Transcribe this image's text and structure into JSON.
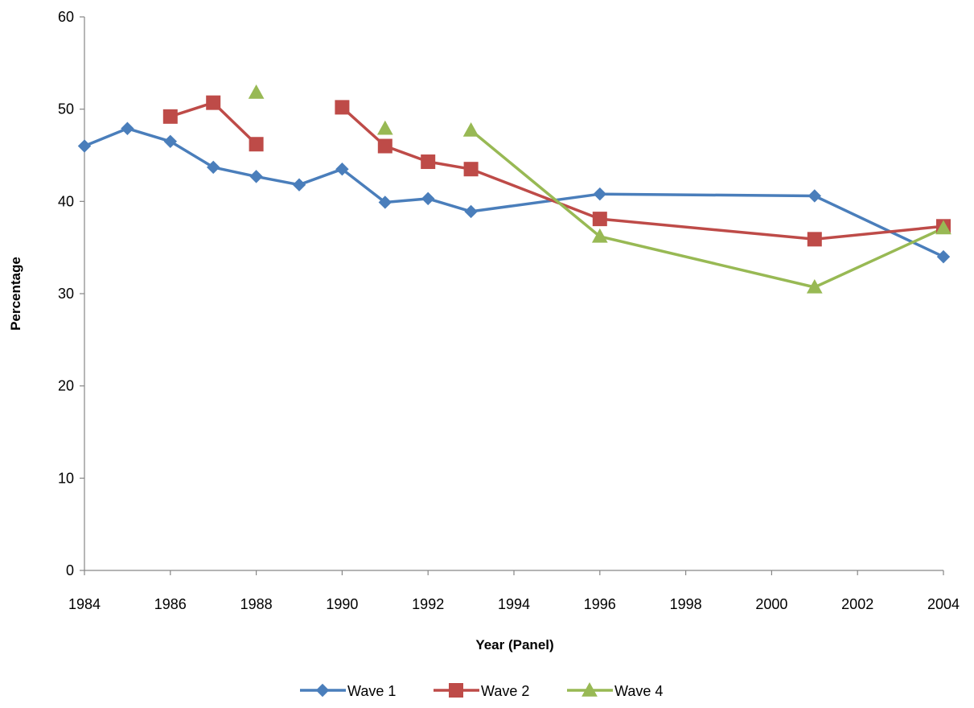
{
  "chart_data": {
    "type": "line",
    "xlabel": "Year (Panel)",
    "ylabel": "Percentage",
    "xlim": [
      1984,
      2004
    ],
    "ylim": [
      0,
      60
    ],
    "x_ticks": [
      1984,
      1986,
      1988,
      1990,
      1992,
      1994,
      1996,
      1998,
      2000,
      2002,
      2004
    ],
    "y_ticks": [
      0,
      10,
      20,
      30,
      40,
      50,
      60
    ],
    "grid": false,
    "legend_position": "bottom",
    "series": [
      {
        "name": "Wave 1",
        "color": "#4a7ebb",
        "marker": "diamond",
        "x": [
          1984,
          1985,
          1986,
          1987,
          1988,
          1989,
          1990,
          1991,
          1992,
          1993,
          1996,
          2001,
          2004
        ],
        "y": [
          46.0,
          47.9,
          46.5,
          43.7,
          42.7,
          41.8,
          43.5,
          39.9,
          40.3,
          38.9,
          40.8,
          40.6,
          34.0
        ]
      },
      {
        "name": "Wave 2",
        "color": "#be4b48",
        "marker": "square",
        "x": [
          1986,
          1987,
          1988,
          1990,
          1991,
          1992,
          1993,
          1996,
          2001,
          2004
        ],
        "y": [
          49.2,
          50.7,
          46.2,
          50.2,
          46.0,
          44.3,
          43.5,
          38.1,
          35.9,
          37.3
        ]
      },
      {
        "name": "Wave 4",
        "color": "#98b954",
        "marker": "triangle",
        "x": [
          1988,
          1991,
          1993,
          1996,
          2001,
          2004
        ],
        "y": [
          51.8,
          47.9,
          47.7,
          36.2,
          30.7,
          37.1
        ]
      }
    ]
  }
}
